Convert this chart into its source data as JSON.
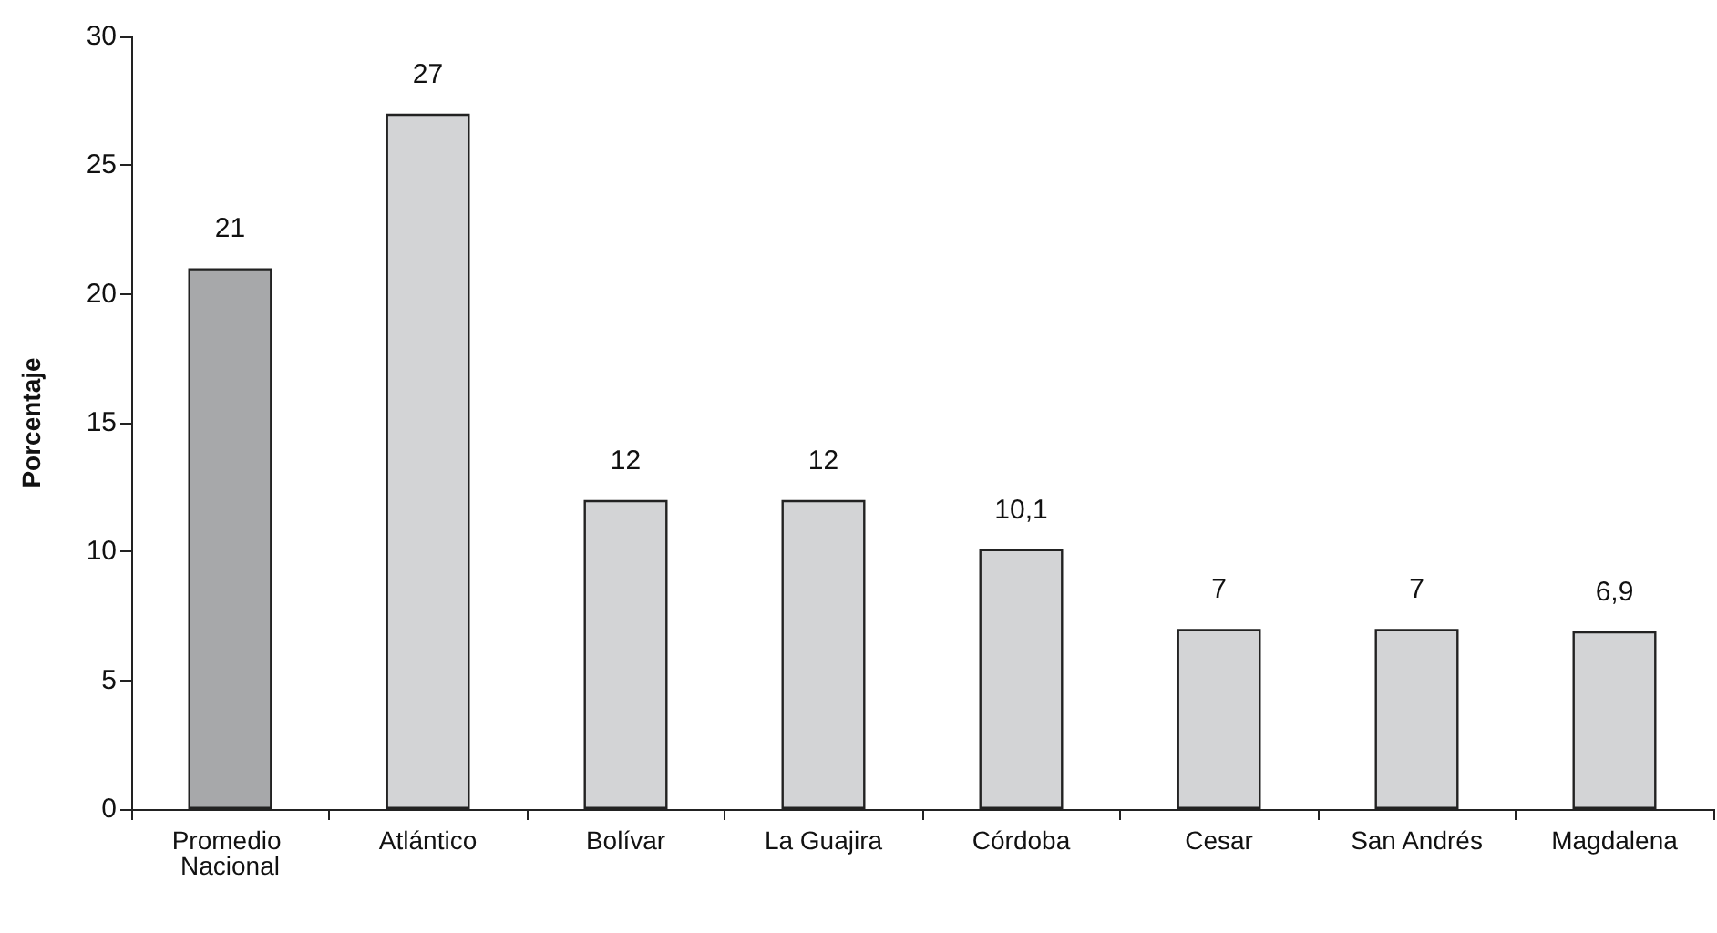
{
  "chart_data": {
    "type": "bar",
    "ylabel": "Porcentaje",
    "categories": [
      "Promedio Nacional",
      "Atlántico",
      "Bolívar",
      "La Guajira",
      "Córdoba",
      "Cesar",
      "San Andrés",
      "Magdalena"
    ],
    "values": [
      21,
      27,
      12,
      12,
      10.1,
      7,
      7,
      6.9
    ],
    "colors": [
      "#a7a8aa",
      "#d3d4d6",
      "#d3d4d6",
      "#d3d4d6",
      "#d3d4d6",
      "#d3d4d6",
      "#d3d4d6",
      "#d3d4d6"
    ],
    "value_labels": [
      "21",
      "27",
      "12",
      "12",
      "10,1",
      "7",
      "7",
      "6,9"
    ],
    "ylim": [
      0,
      30
    ],
    "yticks": [
      0,
      5,
      10,
      15,
      20,
      25,
      30
    ]
  }
}
